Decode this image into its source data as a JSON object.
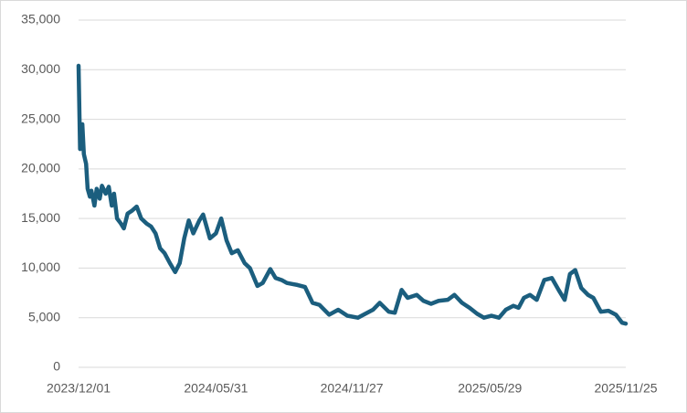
{
  "chart_data": {
    "type": "line",
    "x": [
      "2023/12/01",
      "2023/12/03",
      "2023/12/06",
      "2023/12/08",
      "2023/12/11",
      "2023/12/13",
      "2023/12/16",
      "2023/12/18",
      "2023/12/22",
      "2023/12/25",
      "2023/12/29",
      "2024/01/01",
      "2024/01/06",
      "2024/01/10",
      "2024/01/14",
      "2024/01/17",
      "2024/01/21",
      "2024/01/26",
      "2024/01/30",
      "2024/02/04",
      "2024/02/10",
      "2024/02/16",
      "2024/02/22",
      "2024/02/29",
      "2024/03/06",
      "2024/03/12",
      "2024/03/18",
      "2024/03/24",
      "2024/03/31",
      "2024/04/07",
      "2024/04/13",
      "2024/04/19",
      "2024/04/25",
      "2024/05/01",
      "2024/05/09",
      "2024/05/14",
      "2024/05/23",
      "2024/05/31",
      "2024/06/07",
      "2024/06/14",
      "2024/06/21",
      "2024/06/29",
      "2024/07/08",
      "2024/07/15",
      "2024/07/25",
      "2024/08/01",
      "2024/08/11",
      "2024/08/18",
      "2024/08/26",
      "2024/09/02",
      "2024/09/09",
      "2024/09/16",
      "2024/09/26",
      "2024/10/06",
      "2024/10/15",
      "2024/10/28",
      "2024/11/09",
      "2024/11/21",
      "2024/12/05",
      "2024/12/15",
      "2024/12/25",
      "2025/01/03",
      "2025/01/15",
      "2025/01/23",
      "2025/02/01",
      "2025/02/09",
      "2025/02/21",
      "2025/03/02",
      "2025/03/12",
      "2025/03/22",
      "2025/04/03",
      "2025/04/12",
      "2025/04/22",
      "2025/05/02",
      "2025/05/12",
      "2025/05/21",
      "2025/05/31",
      "2025/06/10",
      "2025/06/19",
      "2025/06/29",
      "2025/07/06",
      "2025/07/13",
      "2025/07/21",
      "2025/07/30",
      "2025/08/09",
      "2025/08/19",
      "2025/08/28",
      "2025/09/05",
      "2025/09/12",
      "2025/09/19",
      "2025/09/27",
      "2025/10/06",
      "2025/10/13",
      "2025/10/23",
      "2025/11/02",
      "2025/11/12",
      "2025/11/20",
      "2025/11/25"
    ],
    "series": [
      {
        "color": "#1b5e7e",
        "values": [
          30400,
          22000,
          24500,
          21500,
          20500,
          18000,
          17200,
          17800,
          16300,
          18000,
          17000,
          18300,
          17500,
          18200,
          16300,
          17500,
          15000,
          14500,
          14000,
          15500,
          15800,
          16200,
          15000,
          14500,
          14200,
          13500,
          12000,
          11500,
          10500,
          9600,
          10500,
          13000,
          14800,
          13500,
          14800,
          15400,
          13000,
          13500,
          15000,
          12800,
          11500,
          11800,
          10500,
          10000,
          8200,
          8500,
          9900,
          9000,
          8800,
          8500,
          8400,
          8300,
          8100,
          6500,
          6300,
          5300,
          5800,
          5200,
          5000,
          5400,
          5800,
          6500,
          5600,
          5500,
          7800,
          7000,
          7300,
          6700,
          6400,
          6700,
          6800,
          7300,
          6500,
          6000,
          5400,
          5000,
          5200,
          5000,
          5800,
          6200,
          6000,
          7000,
          7300,
          6800,
          8800,
          9000,
          7800,
          6800,
          9400,
          9800,
          8000,
          7300,
          7000,
          5600,
          5700,
          5300,
          4500,
          4400
        ]
      }
    ],
    "xlim": [
      "2023/12/01",
      "2025/11/25"
    ],
    "xticks": [
      "2023/12/01",
      "2024/05/31",
      "2024/11/27",
      "2025/05/29",
      "2025/11/25"
    ],
    "ylim": [
      0,
      35000
    ],
    "yticks": [
      0,
      {
        "value": 5000,
        "label": "5,000"
      },
      {
        "value": 10000,
        "label": "10,000"
      },
      {
        "value": 15000,
        "label": "15,000"
      },
      {
        "value": 20000,
        "label": "20,000"
      },
      {
        "value": 25000,
        "label": "25,000"
      },
      {
        "value": 30000,
        "label": "30,000"
      },
      {
        "value": 35000,
        "label": "35,000"
      }
    ],
    "grid": true
  }
}
